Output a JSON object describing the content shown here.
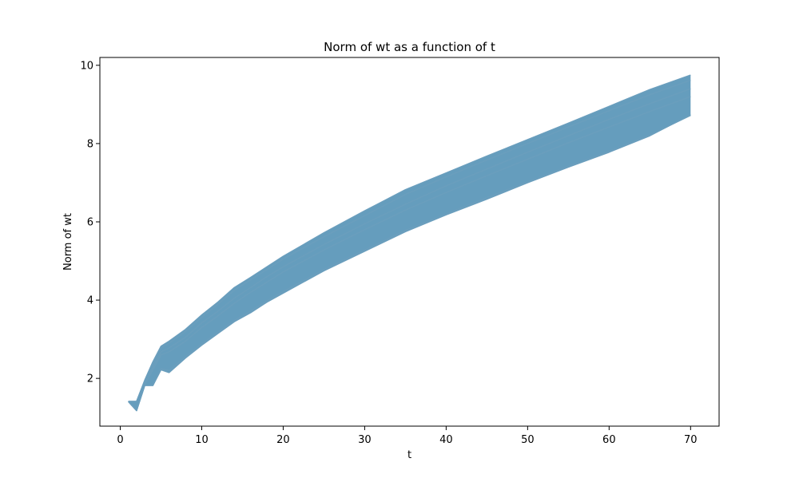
{
  "chart_data": {
    "type": "line",
    "title": "Norm of wt as a function of t",
    "xlabel": "t",
    "ylabel": "Norm of wt",
    "xlim": [
      -2.5,
      73.5
    ],
    "ylim": [
      0.78,
      10.2
    ],
    "x_ticks": [
      0,
      10,
      20,
      30,
      40,
      50,
      60,
      70
    ],
    "y_ticks": [
      2,
      4,
      6,
      8,
      10
    ],
    "grid": false,
    "legend": "none",
    "series_color": "#6a9ebd",
    "band_color": "#659dbd",
    "x": [
      1,
      2,
      3,
      4,
      5,
      6,
      8,
      10,
      12,
      14,
      16,
      18,
      20,
      25,
      30,
      35,
      40,
      45,
      50,
      55,
      60,
      65,
      70
    ],
    "series": [
      {
        "values": [
          1.41,
          1.41,
          1.95,
          2.42,
          2.82,
          2.95,
          3.25,
          3.62,
          3.95,
          4.32,
          4.58,
          4.85,
          5.12,
          5.72,
          6.28,
          6.82,
          7.25,
          7.68,
          8.1,
          8.52,
          8.95,
          9.38,
          9.75
        ]
      },
      {
        "values": [
          1.41,
          1.41,
          1.92,
          2.38,
          2.78,
          2.9,
          3.2,
          3.56,
          3.9,
          4.25,
          4.52,
          4.78,
          5.05,
          5.62,
          6.16,
          6.7,
          7.15,
          7.58,
          8.0,
          8.42,
          8.84,
          9.25,
          9.62
        ]
      },
      {
        "values": [
          1.41,
          1.18,
          1.85,
          2.28,
          2.68,
          2.78,
          3.05,
          3.42,
          3.72,
          4.05,
          4.32,
          4.6,
          4.85,
          5.42,
          5.95,
          6.45,
          6.92,
          7.35,
          7.78,
          8.2,
          8.62,
          9.02,
          9.4
        ]
      },
      {
        "values": [
          1.41,
          1.18,
          1.82,
          2.22,
          2.6,
          2.68,
          2.95,
          3.3,
          3.6,
          3.92,
          4.2,
          4.46,
          4.72,
          5.28,
          5.8,
          6.3,
          6.75,
          7.18,
          7.6,
          8.02,
          8.42,
          8.82,
          9.2
        ]
      },
      {
        "values": [
          1.41,
          1.18,
          1.82,
          1.82,
          2.25,
          2.2,
          2.55,
          2.88,
          3.18,
          3.48,
          3.72,
          3.98,
          4.22,
          4.78,
          5.28,
          5.78,
          6.2,
          6.62,
          7.02,
          7.42,
          7.8,
          8.22,
          8.72
        ]
      },
      {
        "values": [
          1.41,
          1.18,
          1.82,
          1.82,
          2.22,
          2.15,
          2.52,
          2.85,
          3.15,
          3.45,
          3.68,
          3.95,
          4.18,
          4.75,
          5.25,
          5.75,
          6.18,
          6.58,
          7.0,
          7.4,
          7.78,
          8.2,
          8.74
        ]
      }
    ]
  }
}
